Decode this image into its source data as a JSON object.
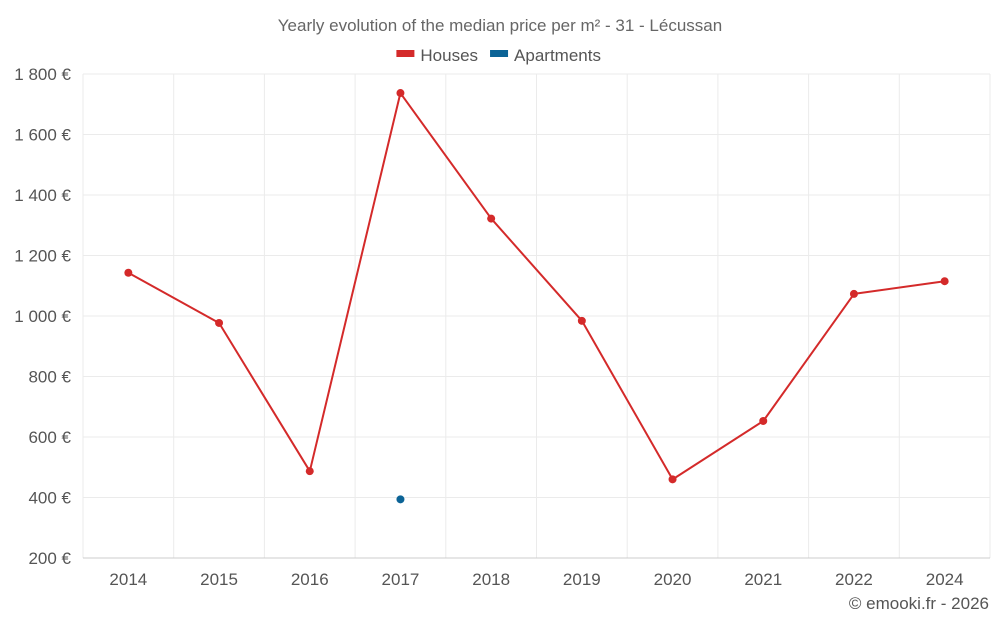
{
  "chart_data": {
    "type": "line",
    "title": "Yearly evolution of the median price per m² - 31 - Lécussan",
    "categories": [
      "2014",
      "2015",
      "2016",
      "2017",
      "2018",
      "2019",
      "2020",
      "2021",
      "2022",
      "2024"
    ],
    "series": [
      {
        "name": "Houses",
        "color": "#d42a2a",
        "values": [
          1143,
          977,
          487,
          1737,
          1322,
          984,
          460,
          653,
          1073,
          1115
        ]
      },
      {
        "name": "Apartments",
        "color": "#0b6396",
        "values": [
          null,
          null,
          null,
          394,
          null,
          null,
          null,
          null,
          null,
          null
        ]
      }
    ],
    "y_ticks": [
      200,
      400,
      600,
      800,
      1000,
      1200,
      1400,
      1600,
      1800
    ],
    "y_tick_labels": [
      "200 €",
      "400 €",
      "600 €",
      "800 €",
      "1 000 €",
      "1 200 €",
      "1 400 €",
      "1 600 €",
      "1 800 €"
    ],
    "ylim": [
      200,
      1800
    ],
    "grid": true,
    "legend_position": "top-center",
    "xlabel": "",
    "ylabel": ""
  },
  "credit": "© emooki.fr - 2026"
}
